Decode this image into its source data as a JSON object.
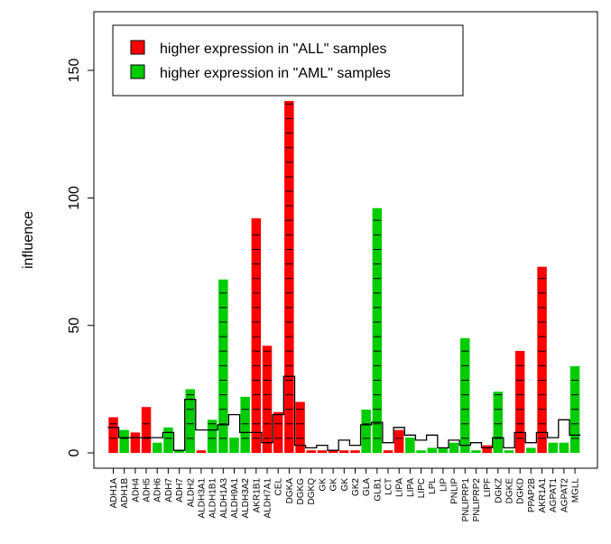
{
  "chart_data": {
    "type": "bar",
    "ylabel": "influence",
    "ylim": [
      -6,
      173
    ],
    "yticks": [
      0,
      50,
      100,
      150
    ],
    "grid": false,
    "legend": {
      "placement": "top-left",
      "entries": [
        {
          "label": "higher expression in \"ALL\" samples",
          "color": "#ff0000"
        },
        {
          "label": "higher expression in \"AML\" samples",
          "color": "#00cc00"
        }
      ]
    },
    "colors": {
      "ALL": "#ff0000",
      "AML": "#00cc00"
    },
    "categories": [
      "ADH1A",
      "ADH1B",
      "ADH4",
      "ADH5",
      "ADH6",
      "ADH7",
      "ADH7",
      "ALDH2",
      "ALDH3A1",
      "ALDH1B1",
      "ALDH1A3",
      "ALDH9A1",
      "ALDH3A2",
      "AKR1B1",
      "ALDH7A1",
      "CEL",
      "DGKA",
      "DGKG",
      "DGKQ",
      "GK",
      "GK",
      "GK",
      "GK2",
      "GLA",
      "GLB1",
      "LCT",
      "LIPA",
      "LIPA",
      "LIPC",
      "LPL",
      "LIP",
      "PNLIP",
      "PNLIPRP1",
      "PNLIPRP2",
      "LIPF",
      "DGKZ",
      "DGKE",
      "DGKD",
      "PPAP2B",
      "AKR1A1",
      "AGPAT1",
      "AGPAT2",
      "MGLL"
    ],
    "values": [
      14,
      9,
      8,
      18,
      4,
      10,
      1,
      25,
      1,
      13,
      68,
      6,
      22,
      92,
      42,
      16,
      138,
      20,
      1,
      1,
      1,
      1,
      1,
      17,
      96,
      1,
      9,
      6,
      1,
      2,
      2,
      4,
      45,
      1,
      3,
      24,
      1,
      40,
      2,
      73,
      4,
      4,
      34
    ],
    "group": [
      "ALL",
      "AML",
      "ALL",
      "ALL",
      "AML",
      "AML",
      "AML",
      "AML",
      "ALL",
      "AML",
      "AML",
      "AML",
      "AML",
      "ALL",
      "ALL",
      "ALL",
      "ALL",
      "ALL",
      "ALL",
      "ALL",
      "ALL",
      "ALL",
      "ALL",
      "AML",
      "AML",
      "ALL",
      "ALL",
      "AML",
      "AML",
      "AML",
      "AML",
      "AML",
      "AML",
      "AML",
      "ALL",
      "AML",
      "AML",
      "ALL",
      "AML",
      "ALL",
      "AML",
      "AML",
      "AML"
    ],
    "baseline": [
      10,
      6,
      6,
      6,
      6,
      8,
      1,
      21,
      9,
      9,
      11,
      15,
      8,
      8,
      4,
      15,
      30,
      3,
      2,
      3,
      1,
      5,
      3,
      11,
      12,
      4,
      10,
      7,
      5,
      7,
      2,
      5,
      3,
      4,
      2,
      6,
      2,
      8,
      4,
      8,
      6,
      13,
      7
    ]
  }
}
